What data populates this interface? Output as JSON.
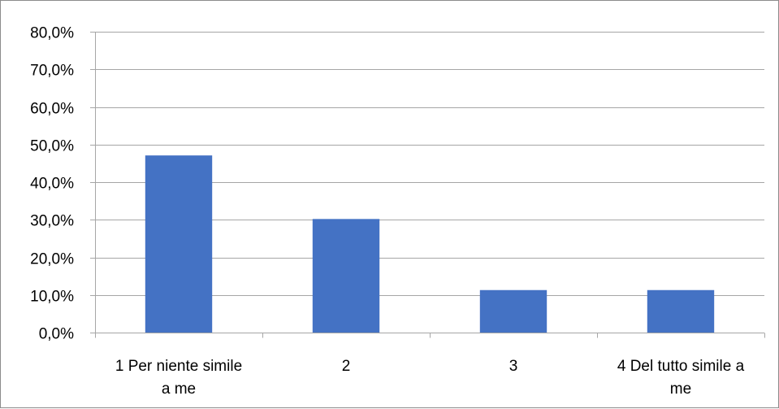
{
  "chart_data": {
    "type": "bar",
    "title": "",
    "xlabel": "",
    "ylabel": "",
    "categories": [
      [
        "1 Per niente simile",
        "a me"
      ],
      [
        "2"
      ],
      [
        "3"
      ],
      [
        "4 Del tutto simile a",
        "me"
      ]
    ],
    "values": [
      47.1,
      30.2,
      11.3,
      11.3
    ],
    "ylim": [
      0,
      80
    ],
    "yticks": [
      0,
      10,
      20,
      30,
      40,
      50,
      60,
      70,
      80
    ],
    "ytick_labels": [
      "0,0%",
      "10,0%",
      "20,0%",
      "30,0%",
      "40,0%",
      "50,0%",
      "60,0%",
      "70,0%",
      "80,0%"
    ],
    "grid": true,
    "legend": "none",
    "bar_color": "#4472C4",
    "grid_color": "#a6a6a6"
  }
}
